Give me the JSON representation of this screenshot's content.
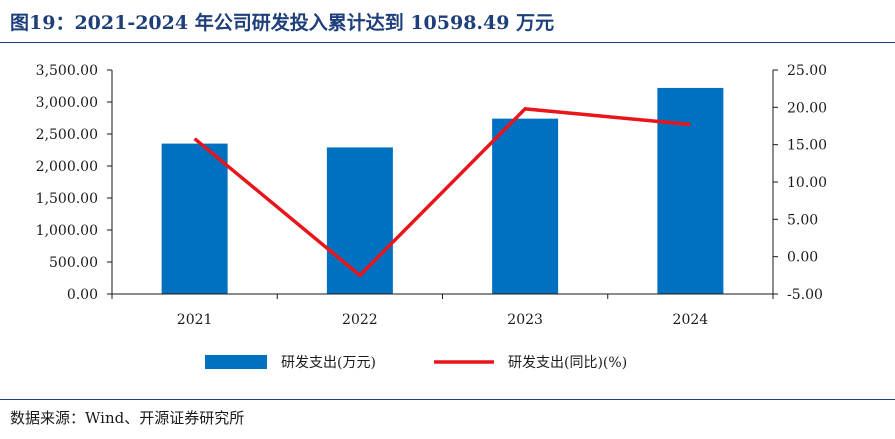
{
  "figure": {
    "title": "图19：2021-2024 年公司研发投入累计达到 10598.49 万元",
    "source": "数据来源：Wind、开源证券研究所"
  },
  "colors": {
    "bar": "#0070c0",
    "line": "#e8161b",
    "title": "#1f3f7a"
  },
  "chart_data": {
    "type": "bar",
    "categories": [
      "2021",
      "2022",
      "2023",
      "2024"
    ],
    "series": [
      {
        "name": "研发支出(万元)",
        "type": "bar",
        "axis": "left",
        "values": [
          2350,
          2290,
          2740,
          3220
        ]
      },
      {
        "name": "研发支出(同比)(%)",
        "type": "line",
        "axis": "right",
        "values": [
          15.8,
          -2.5,
          19.8,
          17.7
        ]
      }
    ],
    "y_left": {
      "min": 0,
      "max": 3500,
      "step": 500,
      "ticks": [
        "0.00",
        "500.00",
        "1,000.00",
        "1,500.00",
        "2,000.00",
        "2,500.00",
        "3,000.00",
        "3,500.00"
      ]
    },
    "y_right": {
      "min": -5,
      "max": 25,
      "step": 5,
      "ticks": [
        "-5.00",
        "0.00",
        "5.00",
        "10.00",
        "15.00",
        "20.00",
        "25.00"
      ]
    },
    "grid": false,
    "legend_position": "bottom"
  }
}
